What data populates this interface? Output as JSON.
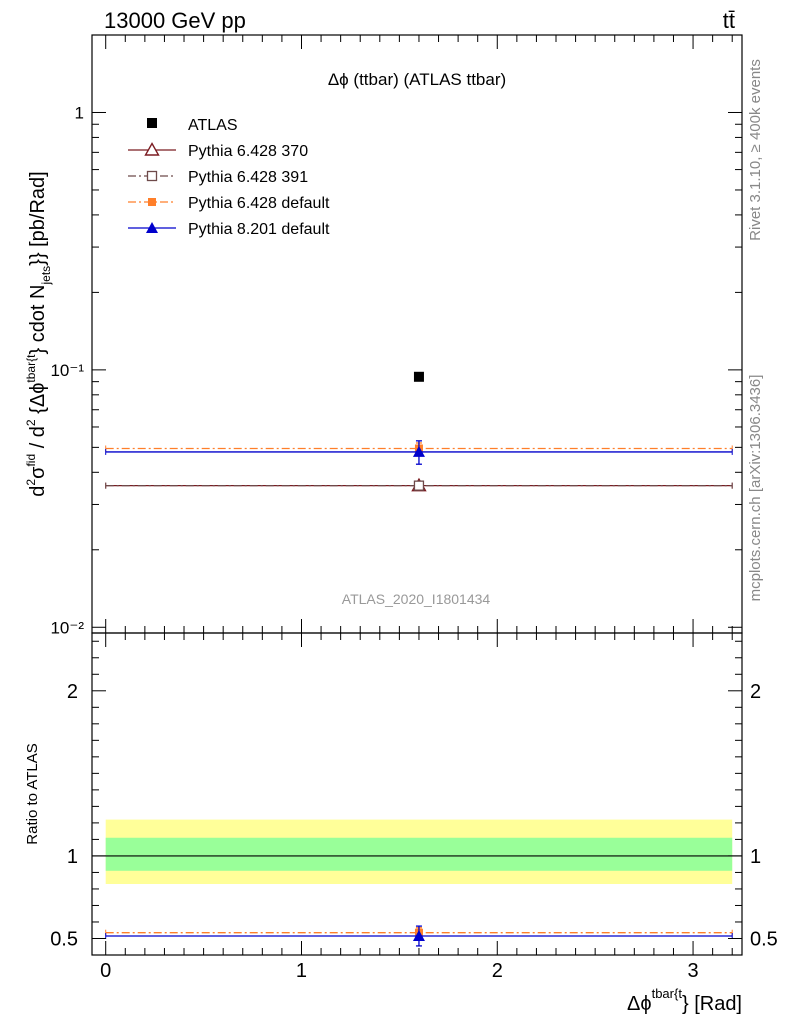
{
  "header": {
    "left": "13000 GeV pp",
    "right": "tt̄"
  },
  "side_labels": {
    "rivet": "Rivet 3.1.10, ≥ 400k events",
    "mcplots": "mcplots.cern.ch [arXiv:1306.3436]"
  },
  "chart_data": [
    {
      "type": "scatter",
      "role": "main",
      "title": "Δϕ (ttbar) (ATLAS ttbar)",
      "watermark": "ATLAS_2020_I1801434",
      "ylabel": "d²σ^fid / d² {Δϕ^tbar{t}} cdot N_jets }} [pb/Rad]",
      "yscale": "log",
      "ylim": [
        0.0095,
        2.0
      ],
      "xlim": [
        -0.07,
        3.25
      ],
      "ytick_labels": [
        "10⁻²",
        "10⁻¹",
        "1"
      ],
      "ytick_values": [
        0.01,
        0.1,
        1
      ],
      "series": [
        {
          "name": "ATLAS",
          "color": "#000000",
          "marker": "square-filled",
          "line": "none",
          "x": [
            1.6
          ],
          "y": [
            0.094
          ]
        },
        {
          "name": "Pythia 6.428 370",
          "color": "#7b1c22",
          "marker": "triangle-open",
          "line": "solid",
          "xrange": [
            0,
            3.2
          ],
          "x": [
            1.6
          ],
          "y": [
            0.0355
          ],
          "yerr": [
            0.0013
          ]
        },
        {
          "name": "Pythia 6.428 391",
          "color": "#6e4a4a",
          "marker": "square-open",
          "line": "dashdot",
          "xrange": [
            0,
            3.2
          ],
          "x": [
            1.6
          ],
          "y": [
            0.0355
          ],
          "yerr": [
            0.0013
          ]
        },
        {
          "name": "Pythia 6.428 default",
          "color": "#ff7f2a",
          "marker": "square-filled",
          "line": "dashdot",
          "xrange": [
            0,
            3.2
          ],
          "x": [
            1.6
          ],
          "y": [
            0.0495
          ],
          "yerr": [
            0.0025
          ]
        },
        {
          "name": "Pythia 8.201 default",
          "color": "#0000cc",
          "marker": "triangle-filled",
          "line": "solid",
          "xrange": [
            0,
            3.2
          ],
          "x": [
            1.6
          ],
          "y": [
            0.048
          ],
          "yerr": [
            0.005
          ]
        }
      ]
    },
    {
      "type": "scatter",
      "role": "ratio",
      "ylabel": "Ratio to ATLAS",
      "xlabel": "Δϕ^tbar{t} } [Rad]",
      "ylim": [
        0.4,
        2.35
      ],
      "xlim": [
        -0.07,
        3.25
      ],
      "ytick_labels": [
        "0.5",
        "1",
        "2"
      ],
      "ytick_values": [
        0.5,
        1,
        2
      ],
      "xtick_labels": [
        "0",
        "1",
        "2",
        "3"
      ],
      "xtick_values": [
        0,
        1,
        2,
        3
      ],
      "bands": [
        {
          "name": "yellow-band",
          "color": "#ffff99",
          "range": [
            0.83,
            1.22
          ]
        },
        {
          "name": "green-band",
          "color": "#99ff99",
          "range": [
            0.91,
            1.11
          ]
        }
      ],
      "series": [
        {
          "name": "Pythia 6.428 default",
          "color": "#ff7f2a",
          "line": "dashdot",
          "marker": "square-filled",
          "xrange": [
            0,
            3.2
          ],
          "x": [
            1.6
          ],
          "y": [
            0.535
          ],
          "yerr": [
            0.03
          ]
        },
        {
          "name": "Pythia 8.201 default",
          "color": "#0000cc",
          "line": "solid",
          "marker": "triangle-filled",
          "xrange": [
            0,
            3.2
          ],
          "x": [
            1.6
          ],
          "y": [
            0.515
          ],
          "yerr": [
            0.06
          ]
        }
      ]
    }
  ]
}
